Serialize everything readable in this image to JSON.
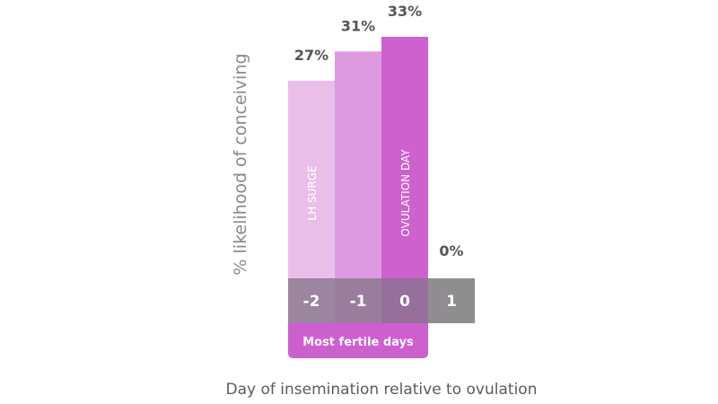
{
  "chart_data": {
    "type": "bar",
    "ylabel": "% likelihood of conceiving",
    "xlabel": "Day of insemination relative to ovulation",
    "categories": [
      "-2",
      "-1",
      "0",
      "1"
    ],
    "values": [
      27,
      31,
      33,
      0
    ],
    "value_labels": [
      "27%",
      "31%",
      "33%",
      "0%"
    ],
    "bar_annotations": [
      "LH SURGE",
      "",
      "OVULATION DAY",
      ""
    ],
    "bar_colors": [
      "#e9bfe9",
      "#dd9ae0",
      "#cd62cf",
      "#cd62cf"
    ],
    "highlight": {
      "label": "Most fertile days",
      "categories": [
        "-2",
        "-1",
        "0"
      ],
      "color": "#cd5fcf"
    },
    "axis_colors": {
      "bar_overlap": "#86748a",
      "plain": "#8f8d90"
    },
    "ylim": [
      0,
      33
    ]
  }
}
